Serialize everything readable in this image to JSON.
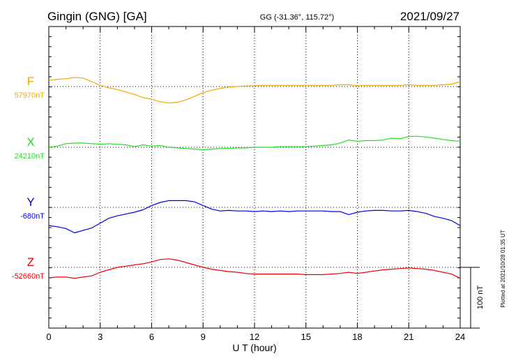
{
  "header": {
    "station": "Gingin (GNG)  [GA]",
    "coordinates": "GG (-31.36°, 115.72°)",
    "date": "2021/09/27"
  },
  "footer_note": "Plotted at 2021/10/28 01:35 UT",
  "scale_label": "100 nT",
  "chart_data": {
    "type": "line",
    "xlabel": "U T (hour)",
    "ylabel": "",
    "xlim": [
      0,
      24
    ],
    "x_ticks": [
      "0",
      "3",
      "6",
      "9",
      "12",
      "15",
      "18",
      "21",
      "24"
    ],
    "x_grid": "dotted",
    "nT_scale_bar": 100,
    "x": [
      0,
      0.5,
      1,
      1.5,
      2,
      2.5,
      3,
      3.5,
      4,
      4.5,
      5,
      5.5,
      6,
      6.5,
      7,
      7.5,
      8,
      8.5,
      9,
      9.5,
      10,
      10.5,
      11,
      11.5,
      12,
      12.5,
      13,
      13.5,
      14,
      14.5,
      15,
      15.5,
      16,
      16.5,
      17,
      17.5,
      18,
      18.5,
      19,
      19.5,
      20,
      20.5,
      21,
      21.5,
      22,
      22.5,
      23,
      23.5,
      24
    ],
    "series": [
      {
        "name": "F",
        "baseline_label": "57970nT",
        "color": "#f0a800",
        "values": [
          10,
          12,
          13,
          15,
          14,
          8,
          2,
          -2,
          -5,
          -9,
          -13,
          -18,
          -21,
          -25,
          -27,
          -26,
          -22,
          -16,
          -10,
          -6,
          -3,
          -1,
          0,
          1,
          1,
          2,
          2,
          2,
          2,
          2,
          2,
          2,
          2,
          2,
          3,
          3,
          1,
          2,
          2,
          2,
          2,
          2,
          3,
          2,
          2,
          2,
          3,
          4,
          8
        ]
      },
      {
        "name": "X",
        "baseline_label": "24210nT",
        "color": "#22dd22",
        "values": [
          0,
          2,
          6,
          7,
          7,
          6,
          5,
          6,
          5,
          4,
          1,
          4,
          2,
          3,
          0,
          -1,
          -2,
          -3,
          -4,
          -3,
          -2,
          -2,
          -1,
          -1,
          0,
          0,
          0,
          1,
          1,
          1,
          1,
          2,
          3,
          4,
          7,
          12,
          10,
          11,
          11,
          12,
          15,
          14,
          18,
          18,
          17,
          15,
          13,
          11,
          10
        ]
      },
      {
        "name": "Y",
        "baseline_label": "-680nT",
        "color": "#0000dd",
        "values": [
          -30,
          -32,
          -35,
          -42,
          -38,
          -34,
          -26,
          -18,
          -14,
          -11,
          -8,
          -4,
          3,
          8,
          11,
          11,
          11,
          9,
          3,
          -3,
          -6,
          -5,
          -6,
          -6,
          -7,
          -6,
          -7,
          -6,
          -7,
          -6,
          -6,
          -6,
          -6,
          -7,
          -7,
          -12,
          -8,
          -6,
          -5,
          -5,
          -6,
          -6,
          -5,
          -7,
          -10,
          -15,
          -18,
          -22,
          -30
        ]
      },
      {
        "name": "Z",
        "baseline_label": "-52660nT",
        "color": "#ee0000",
        "values": [
          -17,
          -16,
          -16,
          -18,
          -16,
          -14,
          -8,
          -4,
          0,
          2,
          4,
          6,
          9,
          13,
          14,
          12,
          8,
          4,
          0,
          -3,
          -5,
          -7,
          -8,
          -10,
          -11,
          -11,
          -11,
          -11,
          -11,
          -11,
          -12,
          -12,
          -12,
          -11,
          -10,
          -8,
          -10,
          -8,
          -6,
          -4,
          -3,
          -2,
          -1,
          -2,
          -3,
          -5,
          -8,
          -11,
          -18
        ]
      }
    ]
  }
}
